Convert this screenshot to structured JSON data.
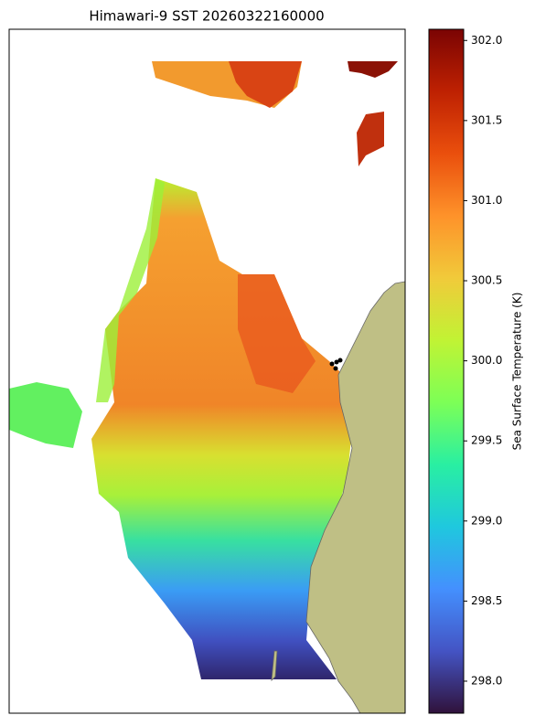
{
  "chart_data": {
    "type": "map",
    "title": "Himawari-9 SST 20260322160000",
    "colorbar_label": "Sea Surface Temperature (K)",
    "colormap": "turbo",
    "clim": [
      297.8,
      302.07
    ],
    "cticks": [
      {
        "value": 298.0,
        "label": "298.0"
      },
      298.5,
      {
        "value": 299.0,
        "label": "299.0"
      },
      299.5,
      {
        "value": 300.0,
        "label": "300.0"
      },
      300.5,
      {
        "value": 301.0,
        "label": "301.0"
      },
      301.5,
      {
        "value": 302.0,
        "label": "302.0"
      }
    ]
  }
}
